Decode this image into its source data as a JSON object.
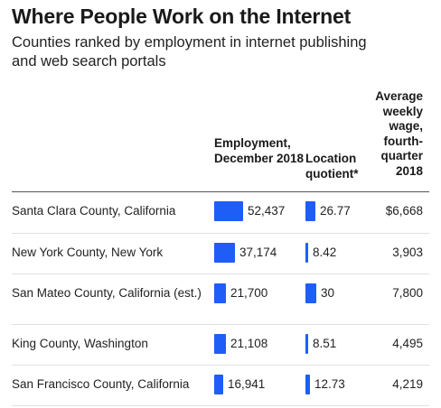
{
  "title": "Where People Work on the Internet",
  "subtitle": "Counties ranked by employment in internet publishing and web search portals",
  "chart_data": {
    "type": "table",
    "columns": [
      {
        "key": "employment",
        "label": "Employment, December 2018"
      },
      {
        "key": "location_quotient",
        "label": "Location quotient*"
      },
      {
        "key": "wage",
        "label": "Average weekly wage, fourth-quarter 2018"
      }
    ],
    "rows": [
      {
        "county": "Santa Clara County, California",
        "employment": 52437,
        "employment_label": "52,437",
        "location_quotient": 26.77,
        "lq_label": "26.77",
        "wage": 6668,
        "wage_label": "$6,668"
      },
      {
        "county": "New York County, New York",
        "employment": 37174,
        "employment_label": "37,174",
        "location_quotient": 8.42,
        "lq_label": "8.42",
        "wage": 3903,
        "wage_label": "3,903"
      },
      {
        "county": "San Mateo County, California (est.)",
        "employment": 21700,
        "employment_label": "21,700",
        "location_quotient": 30,
        "lq_label": "30",
        "wage": 7800,
        "wage_label": "7,800"
      },
      {
        "county": "King County, Washington",
        "employment": 21108,
        "employment_label": "21,108",
        "location_quotient": 8.51,
        "lq_label": "8.51",
        "wage": 4495,
        "wage_label": "4,495"
      },
      {
        "county": "San Francisco County, California",
        "employment": 16941,
        "employment_label": "16,941",
        "location_quotient": 12.73,
        "lq_label": "12.73",
        "wage": 4219,
        "wage_label": "4,219"
      }
    ],
    "bar_color": "#1f5df7"
  }
}
